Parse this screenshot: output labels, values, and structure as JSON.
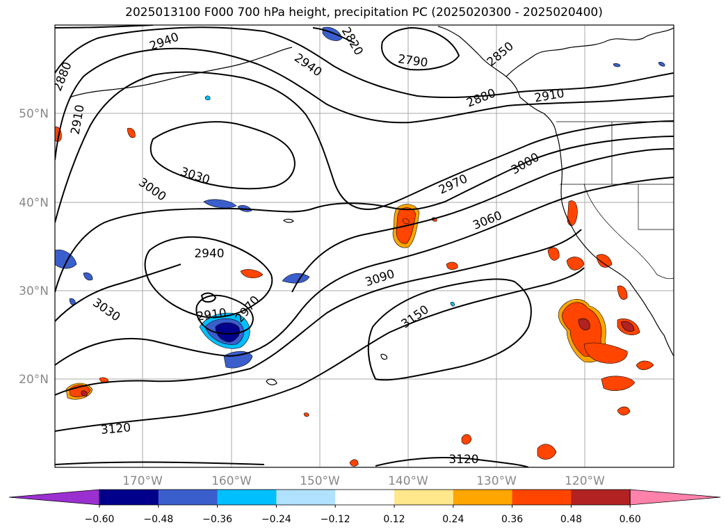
{
  "title": "2025013100 F000 700 hPa height, precipitation PC (2025020300 - 2025020400)",
  "axes": {
    "lon_ticks": [
      "170°W",
      "160°W",
      "150°W",
      "140°W",
      "130°W",
      "120°W"
    ],
    "lat_ticks": [
      "50°N",
      "40°N",
      "30°N",
      "20°N"
    ],
    "tick_color": "#888888"
  },
  "contour_labels": [
    "2940",
    "2880",
    "2910",
    "2820",
    "2790",
    "2850",
    "2880",
    "2910",
    "2940",
    "3030",
    "3000",
    "2970",
    "3000",
    "3060",
    "2940",
    "3090",
    "2910",
    "2970",
    "3030",
    "3150",
    "3120",
    "3120"
  ],
  "colorbar": {
    "ticks": [
      "−0.60",
      "−0.48",
      "−0.36",
      "−0.24",
      "−0.12",
      "0.12",
      "0.24",
      "0.36",
      "0.48",
      "0.60"
    ],
    "colors": [
      "#9b30d0",
      "#00008b",
      "#3a5fcd",
      "#00bfff",
      "#b0e2ff",
      "#ffffff",
      "#ffe78c",
      "#ffa500",
      "#ff4500",
      "#b22222",
      "#ff82ab"
    ]
  }
}
